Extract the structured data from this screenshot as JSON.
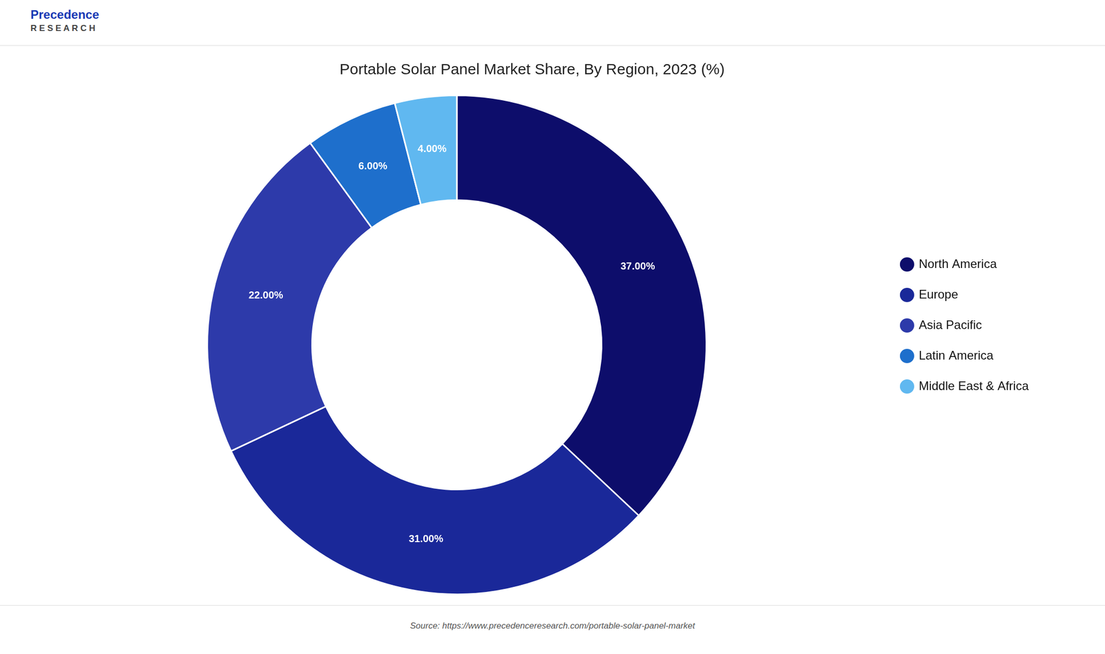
{
  "chart_data": {
    "type": "doughnut",
    "title": "Portable Solar Panel Market Share, By Region, 2023 (%)",
    "categories": [
      "North America",
      "Europe",
      "Asia Pacific",
      "Latin America",
      "Middle East & Africa"
    ],
    "values": [
      37.0,
      31.0,
      22.0,
      6.0,
      4.0
    ],
    "value_labels": [
      "37.00%",
      "31.00%",
      "22.00%",
      "6.00%",
      "4.00%"
    ],
    "colors": [
      "#0d0d6b",
      "#1a2899",
      "#2d3aaa",
      "#1e6fcc",
      "#60b8f0"
    ],
    "data_labels": true,
    "legend": "right",
    "annotations": [
      "Precedence",
      "R E S E A R C H",
      "Source: https://www.precedenceresearch.com/portable-solar-panel-market"
    ]
  }
}
